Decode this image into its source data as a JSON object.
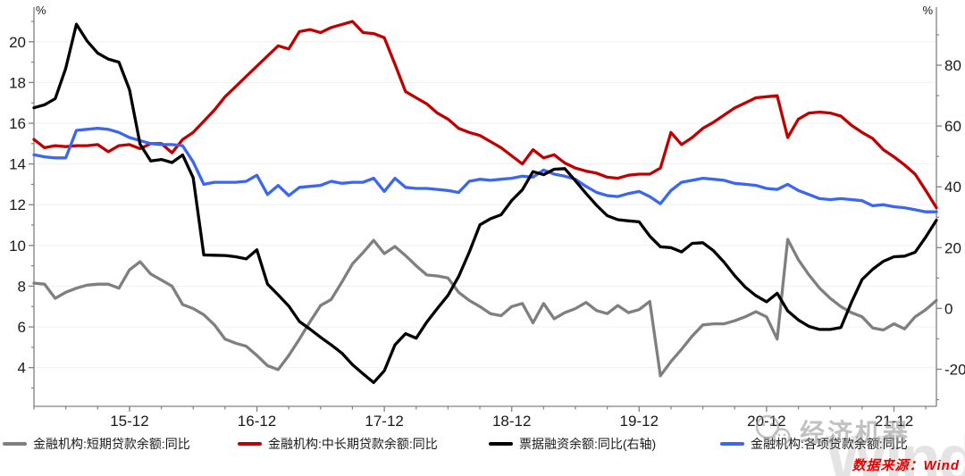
{
  "source_note": "数据来源：Wind",
  "watermarks": {
    "brand_icon": "wechat-icon",
    "brand_text": "经济机器",
    "wind_text": "Wind"
  },
  "chart_data": {
    "type": "line",
    "title": "",
    "grid": "horizontal-on",
    "legend_position": "bottom",
    "left_axis": {
      "unit": "%",
      "tick_values": [
        4,
        6,
        8,
        10,
        12,
        14,
        16,
        18,
        20
      ],
      "minor_tick_values": [
        3,
        5,
        7,
        9,
        11,
        13,
        15,
        17,
        19,
        21
      ],
      "range": [
        2.1,
        21.7
      ]
    },
    "right_axis": {
      "unit": "%",
      "tick_values": [
        -20,
        0,
        20,
        40,
        60,
        80
      ],
      "minor_tick_values": [
        -30,
        -10,
        10,
        30,
        50,
        70,
        90
      ],
      "range": [
        -32.2,
        99.1
      ]
    },
    "x_tick_labels": [
      "15-12",
      "16-12",
      "17-12",
      "18-12",
      "19-12",
      "20-12",
      "21-12"
    ],
    "x_tick_indices": [
      9,
      21,
      33,
      45,
      57,
      69,
      81
    ],
    "x_minor_tick_step": 3,
    "months": [
      "2015-03",
      "2015-04",
      "2015-05",
      "2015-06",
      "2015-07",
      "2015-08",
      "2015-09",
      "2015-10",
      "2015-11",
      "2015-12",
      "2016-01",
      "2016-02",
      "2016-03",
      "2016-04",
      "2016-05",
      "2016-06",
      "2016-07",
      "2016-08",
      "2016-09",
      "2016-10",
      "2016-11",
      "2016-12",
      "2017-01",
      "2017-02",
      "2017-03",
      "2017-04",
      "2017-05",
      "2017-06",
      "2017-07",
      "2017-08",
      "2017-09",
      "2017-10",
      "2017-11",
      "2017-12",
      "2018-01",
      "2018-02",
      "2018-03",
      "2018-04",
      "2018-05",
      "2018-06",
      "2018-07",
      "2018-08",
      "2018-09",
      "2018-10",
      "2018-11",
      "2018-12",
      "2019-01",
      "2019-02",
      "2019-03",
      "2019-04",
      "2019-05",
      "2019-06",
      "2019-07",
      "2019-08",
      "2019-09",
      "2019-10",
      "2019-11",
      "2019-12",
      "2020-01",
      "2020-02",
      "2020-03",
      "2020-04",
      "2020-05",
      "2020-06",
      "2020-07",
      "2020-08",
      "2020-09",
      "2020-10",
      "2020-11",
      "2020-12",
      "2021-01",
      "2021-02",
      "2021-03",
      "2021-04",
      "2021-05",
      "2021-06",
      "2021-07",
      "2021-08",
      "2021-09",
      "2021-10",
      "2021-11",
      "2021-12",
      "2022-01",
      "2022-02",
      "2022-03",
      "2022-04"
    ],
    "series": [
      {
        "name": "金融机构:短期贷款余额:同比",
        "color": "#7f7f7f",
        "axis": "left",
        "values": [
          8.15,
          8.1,
          7.4,
          7.7,
          7.9,
          8.05,
          8.1,
          8.1,
          7.9,
          8.8,
          9.2,
          8.6,
          8.3,
          8.0,
          7.1,
          6.9,
          6.6,
          6.1,
          5.4,
          5.2,
          5.05,
          4.6,
          4.1,
          3.9,
          4.6,
          5.4,
          6.25,
          7.05,
          7.35,
          8.2,
          9.1,
          9.65,
          10.25,
          9.6,
          9.95,
          9.5,
          9.0,
          8.55,
          8.5,
          8.4,
          7.7,
          7.3,
          7.0,
          6.65,
          6.55,
          7.0,
          7.15,
          6.2,
          7.15,
          6.4,
          6.7,
          6.9,
          7.2,
          6.8,
          6.65,
          7.05,
          6.7,
          6.85,
          7.25,
          3.6,
          4.3,
          4.9,
          5.55,
          6.1,
          6.15,
          6.15,
          6.3,
          6.5,
          6.75,
          6.5,
          5.4,
          10.3,
          9.3,
          8.55,
          7.9,
          7.4,
          7.0,
          6.7,
          6.5,
          5.95,
          5.85,
          6.15,
          5.9,
          6.5,
          6.85,
          7.3
        ]
      },
      {
        "name": "金融机构:中长期贷款余额:同比",
        "color": "#c00000",
        "axis": "left",
        "values": [
          15.2,
          14.8,
          14.9,
          14.85,
          14.9,
          14.9,
          14.95,
          14.6,
          14.9,
          14.95,
          14.75,
          15.0,
          15.0,
          14.55,
          15.2,
          15.55,
          16.1,
          16.65,
          17.3,
          17.8,
          18.3,
          18.8,
          19.3,
          19.8,
          19.65,
          20.5,
          20.6,
          20.45,
          20.7,
          20.85,
          21.0,
          20.45,
          20.4,
          20.2,
          18.9,
          17.55,
          17.25,
          16.95,
          16.5,
          16.2,
          15.75,
          15.55,
          15.4,
          15.1,
          14.8,
          14.4,
          14.0,
          14.7,
          14.3,
          14.45,
          14.05,
          13.8,
          13.65,
          13.55,
          13.35,
          13.3,
          13.45,
          13.5,
          13.5,
          13.8,
          15.55,
          14.95,
          15.3,
          15.75,
          16.05,
          16.4,
          16.75,
          17.0,
          17.25,
          17.3,
          17.35,
          15.3,
          16.2,
          16.5,
          16.55,
          16.5,
          16.35,
          15.9,
          15.55,
          15.25,
          14.7,
          14.35,
          13.95,
          13.5,
          12.7,
          11.85
        ]
      },
      {
        "name": "票据融资余额:同比(右轴)",
        "color": "#000000",
        "axis": "right",
        "values": [
          66,
          67,
          69,
          79,
          93.5,
          88,
          84,
          82,
          81,
          72,
          54,
          48.5,
          49,
          48,
          50.5,
          43,
          17.6,
          17.5,
          17.4,
          17,
          16.3,
          19.3,
          8,
          4.5,
          0.8,
          -4.3,
          -6.8,
          -9.5,
          -12,
          -14.7,
          -18.5,
          -21.5,
          -24.4,
          -20.5,
          -12,
          -8.3,
          -9.8,
          -4.5,
          0,
          4.3,
          10.5,
          18.5,
          27.5,
          29.5,
          30.8,
          35.5,
          39,
          45,
          44,
          45.8,
          46,
          42,
          37.8,
          33.9,
          30.5,
          29.2,
          28.8,
          28.5,
          23.8,
          20.3,
          20,
          18.6,
          21.4,
          21.6,
          19,
          15.2,
          10.8,
          7,
          4.2,
          2.2,
          5,
          -0.8,
          -3.8,
          -5.9,
          -6.9,
          -6.9,
          -6.3,
          2,
          9.5,
          12.9,
          15.5,
          17,
          17.2,
          18.5,
          23.5,
          29
        ]
      },
      {
        "name": "金融机构:各项贷款余额:同比",
        "color": "#3a66f0",
        "axis": "left",
        "values": [
          14.45,
          14.35,
          14.3,
          14.3,
          15.65,
          15.7,
          15.75,
          15.7,
          15.55,
          15.3,
          15.15,
          15.0,
          14.95,
          14.95,
          14.9,
          14.1,
          13.0,
          13.1,
          13.1,
          13.1,
          13.15,
          13.45,
          12.5,
          12.95,
          12.45,
          12.85,
          12.9,
          12.95,
          13.15,
          13.05,
          13.1,
          13.1,
          13.3,
          12.65,
          13.3,
          12.85,
          12.8,
          12.8,
          12.75,
          12.7,
          12.6,
          13.15,
          13.25,
          13.2,
          13.25,
          13.3,
          13.4,
          13.35,
          13.7,
          13.5,
          13.4,
          13.25,
          12.9,
          12.6,
          12.45,
          12.4,
          12.55,
          12.65,
          12.4,
          12.05,
          12.7,
          13.1,
          13.2,
          13.3,
          13.25,
          13.2,
          13.05,
          13.0,
          12.95,
          12.8,
          12.75,
          13.0,
          12.7,
          12.5,
          12.3,
          12.25,
          12.3,
          12.25,
          12.2,
          11.95,
          12.0,
          11.9,
          11.85,
          11.75,
          11.65,
          11.65
        ]
      }
    ]
  }
}
